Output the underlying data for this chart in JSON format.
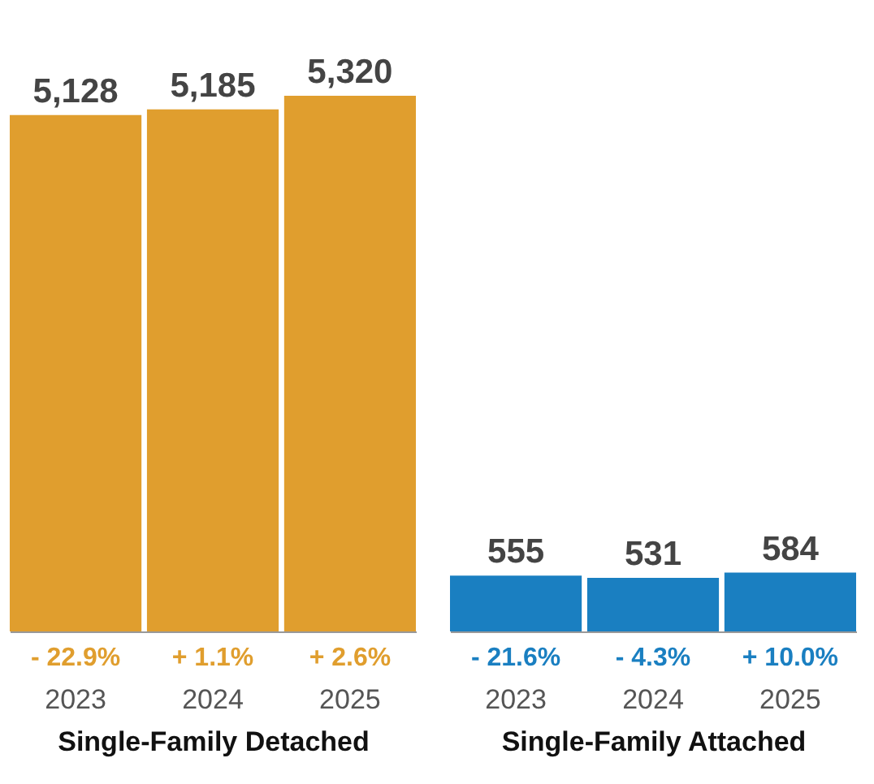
{
  "chart_data": [
    {
      "type": "bar",
      "xlabel": "Single-Family Detached",
      "categories": [
        "2023",
        "2024",
        "2025"
      ],
      "values": [
        5128,
        5185,
        5320
      ],
      "color": "#e09e2e",
      "value_labels": [
        "5,128",
        "5,185",
        "5,320"
      ],
      "annotations": [
        "- 22.9%",
        "+ 1.1%",
        "+ 2.6%"
      ],
      "tick_labels": "x",
      "grid": false,
      "legend": false
    },
    {
      "type": "bar",
      "xlabel": "Single-Family Attached",
      "categories": [
        "2023",
        "2024",
        "2025"
      ],
      "values": [
        555,
        531,
        584
      ],
      "color": "#1a7fc1",
      "value_labels": [
        "555",
        "531",
        "584"
      ],
      "annotations": [
        "- 21.6%",
        "- 4.3%",
        "+ 10.0%"
      ],
      "tick_labels": "x",
      "grid": false,
      "legend": false
    }
  ]
}
